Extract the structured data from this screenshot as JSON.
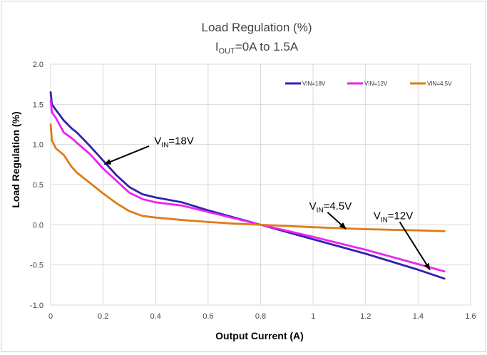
{
  "chart_data": {
    "type": "line",
    "title": "Load Regulation (%)",
    "subtitle": {
      "main": "I",
      "sub": "OUT",
      "rest": "=0A to 1.5A"
    },
    "xlabel": "Output Current (A)",
    "ylabel": "Load Regulation (%)",
    "xlim": [
      0,
      1.6
    ],
    "ylim": [
      -1.0,
      2.0
    ],
    "xticks": [
      0,
      0.2,
      0.4,
      0.6,
      0.8,
      1,
      1.2,
      1.4,
      1.6
    ],
    "xtick_labels": [
      "0",
      "0.2",
      "0.4",
      "0.6",
      "0.8",
      "1",
      "1.2",
      "1.4",
      "1.6"
    ],
    "yticks": [
      -1.0,
      -0.5,
      0.0,
      0.5,
      1.0,
      1.5,
      2.0
    ],
    "ytick_labels": [
      "-1.0",
      "-0.5",
      "0.0",
      "0.5",
      "1.0",
      "1.5",
      "2.0"
    ],
    "grid": true,
    "legend_position": "top-right",
    "series": [
      {
        "name": "VIN=18V",
        "color": "#2e22b4",
        "x": [
          0,
          0.005,
          0.02,
          0.05,
          0.08,
          0.1,
          0.15,
          0.2,
          0.25,
          0.3,
          0.35,
          0.4,
          0.5,
          0.6,
          0.7,
          0.8,
          1.0,
          1.2,
          1.4,
          1.5
        ],
        "y": [
          1.65,
          1.5,
          1.43,
          1.3,
          1.2,
          1.15,
          0.98,
          0.8,
          0.62,
          0.47,
          0.38,
          0.34,
          0.28,
          0.18,
          0.09,
          0.0,
          -0.18,
          -0.36,
          -0.56,
          -0.67
        ]
      },
      {
        "name": "VIN=12V",
        "color": "#ee22ee",
        "x": [
          0,
          0.005,
          0.02,
          0.05,
          0.08,
          0.1,
          0.15,
          0.2,
          0.25,
          0.3,
          0.35,
          0.4,
          0.5,
          0.6,
          0.7,
          0.8,
          1.0,
          1.2,
          1.4,
          1.5
        ],
        "y": [
          1.55,
          1.4,
          1.33,
          1.15,
          1.08,
          1.02,
          0.88,
          0.7,
          0.55,
          0.4,
          0.32,
          0.28,
          0.24,
          0.16,
          0.08,
          0.0,
          -0.15,
          -0.31,
          -0.49,
          -0.58
        ]
      },
      {
        "name": "VIN=4.5V",
        "color": "#e07b1a",
        "x": [
          0,
          0.005,
          0.02,
          0.05,
          0.08,
          0.1,
          0.15,
          0.2,
          0.25,
          0.3,
          0.35,
          0.4,
          0.5,
          0.6,
          0.7,
          0.8,
          1.0,
          1.2,
          1.4,
          1.5
        ],
        "y": [
          1.25,
          1.05,
          0.95,
          0.87,
          0.72,
          0.65,
          0.52,
          0.39,
          0.27,
          0.17,
          0.11,
          0.09,
          0.06,
          0.035,
          0.015,
          0.0,
          -0.03,
          -0.055,
          -0.07,
          -0.08
        ]
      }
    ],
    "annotations": [
      {
        "id": "vin18",
        "main": "V",
        "sub": "IN",
        "rest": "=18V",
        "label_x": 0.395,
        "label_y": 1.0,
        "arrow_from": [
          0.375,
          0.98
        ],
        "arrow_to": [
          0.205,
          0.755
        ]
      },
      {
        "id": "vin45",
        "main": "V",
        "sub": "IN",
        "rest": "=4.5V",
        "label_x": 0.985,
        "label_y": 0.19,
        "arrow_from": [
          1.055,
          0.155
        ],
        "arrow_to": [
          1.125,
          -0.05
        ]
      },
      {
        "id": "vin12",
        "main": "V",
        "sub": "IN",
        "rest": "=12V",
        "label_x": 1.23,
        "label_y": 0.07,
        "arrow_from": [
          1.33,
          0.035
        ],
        "arrow_to": [
          1.445,
          -0.56
        ]
      }
    ]
  }
}
